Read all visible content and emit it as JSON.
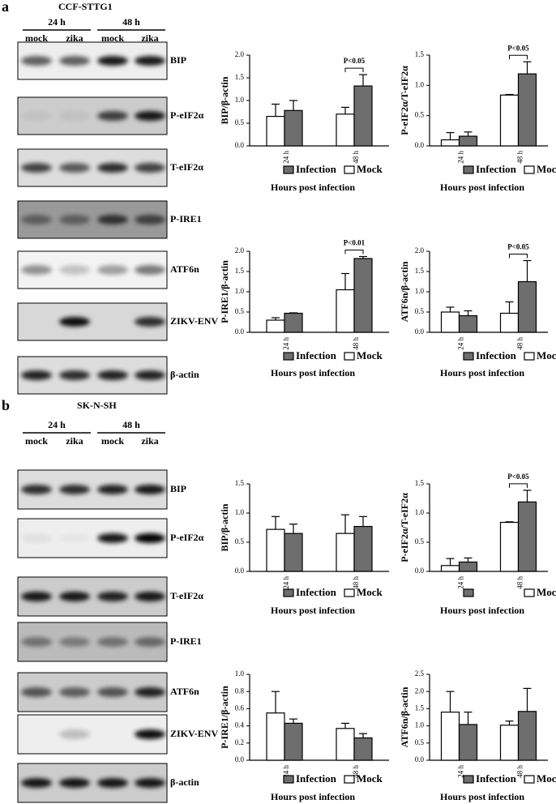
{
  "panels": [
    {
      "label": "a",
      "cell_line": "CCF-STTG1",
      "time_headers": [
        "24 h",
        "48 h"
      ],
      "lanes": [
        "mock",
        "zika",
        "mock",
        "zika"
      ],
      "blots": [
        "BIP",
        "P-eIF2α",
        "T-eIF2α",
        "P-IRE1",
        "ATF6n",
        "ZIKV-ENV",
        "β-actin"
      ]
    },
    {
      "label": "b",
      "cell_line": "SK-N-SH",
      "time_headers": [
        "24 h",
        "48 h"
      ],
      "lanes": [
        "mock",
        "zika",
        "mock",
        "zika"
      ],
      "blots": [
        "BIP",
        "P-eIF2α",
        "T-eIF2α",
        "P-IRE1",
        "ATF6n",
        "ZIKV-ENV",
        "β-actin"
      ]
    }
  ],
  "chart_data": [
    {
      "type": "bar",
      "ylabel": "BIP/β-actin",
      "xlabel": "Hours post infection",
      "categories": [
        "24 h",
        "48 h"
      ],
      "series": [
        {
          "name": "Mock",
          "color": "#ffffff",
          "values": [
            0.65,
            0.7
          ],
          "errors": [
            0.27,
            0.15
          ]
        },
        {
          "name": "Infection",
          "color": "#6e6e6e",
          "values": [
            0.78,
            1.32
          ],
          "errors": [
            0.22,
            0.25
          ]
        }
      ],
      "ylim": [
        0,
        2
      ],
      "yticks": [
        {
          "value": 0,
          "label": "0.0"
        },
        {
          "value": 0.5,
          "label": "0.5"
        },
        {
          "value": 1,
          "label": "1.0"
        },
        {
          "value": 1.5,
          "label": "1.5"
        },
        {
          "value": 2,
          "label": "2.0"
        }
      ],
      "annotation": "P<0.05"
    },
    {
      "type": "bar",
      "ylabel": "P-eIF2α/T-eIF2α",
      "xlabel": "Hours post infection",
      "categories": [
        "24 h",
        "48 h"
      ],
      "series": [
        {
          "name": "Mock",
          "color": "#ffffff",
          "values": [
            0.1,
            0.84
          ],
          "errors": [
            0.12,
            0.01
          ]
        },
        {
          "name": "Infection",
          "color": "#6e6e6e",
          "values": [
            0.16,
            1.19
          ],
          "errors": [
            0.07,
            0.2
          ]
        }
      ],
      "ylim": [
        0,
        1.5
      ],
      "yticks": [
        {
          "value": 0,
          "label": "0.0"
        },
        {
          "value": 0.5,
          "label": "0.5"
        },
        {
          "value": 1,
          "label": "1.0"
        },
        {
          "value": 1.5,
          "label": "1.5"
        }
      ],
      "annotation": "P<0.05"
    },
    {
      "type": "bar",
      "ylabel": "P-IRE1/β-actin",
      "xlabel": "Hours post infection",
      "categories": [
        "24 h",
        "48 h"
      ],
      "series": [
        {
          "name": "Mock",
          "color": "#ffffff",
          "values": [
            0.3,
            1.05
          ],
          "errors": [
            0.06,
            0.4
          ]
        },
        {
          "name": "Infection",
          "color": "#6e6e6e",
          "values": [
            0.47,
            1.82
          ],
          "errors": [
            0.01,
            0.05
          ]
        }
      ],
      "ylim": [
        0,
        2
      ],
      "yticks": [
        {
          "value": 0,
          "label": "0.0"
        },
        {
          "value": 0.5,
          "label": "0.5"
        },
        {
          "value": 1,
          "label": "1.0"
        },
        {
          "value": 1.5,
          "label": "1.5"
        },
        {
          "value": 2,
          "label": "2.0"
        }
      ],
      "annotation": "P<0.01"
    },
    {
      "type": "bar",
      "ylabel": "ATF6n/β-actin",
      "xlabel": "Hours post infection",
      "categories": [
        "24 h",
        "48 h"
      ],
      "series": [
        {
          "name": "Mock",
          "color": "#ffffff",
          "values": [
            0.5,
            0.47
          ],
          "errors": [
            0.12,
            0.28
          ]
        },
        {
          "name": "Infection",
          "color": "#6e6e6e",
          "values": [
            0.41,
            1.25
          ],
          "errors": [
            0.12,
            0.52
          ]
        }
      ],
      "ylim": [
        0,
        2
      ],
      "yticks": [
        {
          "value": 0,
          "label": "0.0"
        },
        {
          "value": 0.5,
          "label": "0.5"
        },
        {
          "value": 1,
          "label": "1.0"
        },
        {
          "value": 1.5,
          "label": "1.5"
        },
        {
          "value": 2,
          "label": "2.0"
        }
      ],
      "annotation": "P<0.05"
    },
    {
      "type": "bar",
      "ylabel": "BIP/β-actin",
      "xlabel": "Hours post infection",
      "categories": [
        "24 h",
        "48 h"
      ],
      "series": [
        {
          "name": "Mock",
          "color": "#ffffff",
          "values": [
            0.72,
            0.65
          ],
          "errors": [
            0.22,
            0.32
          ]
        },
        {
          "name": "Infection",
          "color": "#6e6e6e",
          "values": [
            0.65,
            0.77
          ],
          "errors": [
            0.16,
            0.17
          ]
        }
      ],
      "ylim": [
        0,
        1.5
      ],
      "yticks": [
        {
          "value": 0,
          "label": "0.0"
        },
        {
          "value": 0.5,
          "label": "0.5"
        },
        {
          "value": 1,
          "label": "1.0"
        },
        {
          "value": 1.5,
          "label": "1.5"
        }
      ]
    },
    {
      "type": "bar",
      "ylabel": "P-eIF2α/T-eIF2α",
      "xlabel": "Hours post infection",
      "categories": [
        "24 h",
        "48 h"
      ],
      "series": [
        {
          "name": "Mock",
          "color": "#ffffff",
          "values": [
            0.1,
            0.84
          ],
          "errors": [
            0.12,
            0.01
          ]
        },
        {
          "name": null,
          "color": "#6e6e6e",
          "values": [
            0.16,
            1.19
          ],
          "errors": [
            0.07,
            0.2
          ]
        }
      ],
      "ylim": [
        0,
        1.5
      ],
      "yticks": [
        {
          "value": 0,
          "label": "0.0"
        },
        {
          "value": 0.5,
          "label": "0.5"
        },
        {
          "value": 1,
          "label": "1.0"
        },
        {
          "value": 1.5,
          "label": "1.5"
        }
      ],
      "annotation": "P<0.05"
    },
    {
      "type": "bar",
      "ylabel": "P-IRE1/β-actin",
      "xlabel": "Hours post infection",
      "categories": [
        "24 h",
        "48 h"
      ],
      "series": [
        {
          "name": "Mock",
          "color": "#ffffff",
          "values": [
            0.55,
            0.37
          ],
          "errors": [
            0.25,
            0.06
          ]
        },
        {
          "name": "Infection",
          "color": "#6e6e6e",
          "values": [
            0.43,
            0.26
          ],
          "errors": [
            0.05,
            0.05
          ]
        }
      ],
      "ylim": [
        0,
        1
      ],
      "yticks": [
        {
          "value": 0,
          "label": "0.0"
        },
        0.2,
        0.4,
        0.6,
        0.8,
        {
          "value": 1,
          "label": "1.0"
        }
      ]
    },
    {
      "type": "bar",
      "ylabel": "ATF6n/β-actin",
      "xlabel": "Hours post infection",
      "categories": [
        "24 h",
        "48 h"
      ],
      "series": [
        {
          "name": "Mock",
          "color": "#ffffff",
          "values": [
            1.4,
            1.02
          ],
          "errors": [
            0.6,
            0.12
          ]
        },
        {
          "name": "Infection",
          "color": "#6e6e6e",
          "values": [
            1.04,
            1.42
          ],
          "errors": [
            0.36,
            0.67
          ]
        }
      ],
      "ylim": [
        0,
        2.5
      ],
      "yticks": [
        {
          "value": 0,
          "label": "0.0"
        },
        {
          "value": 0.5,
          "label": "0.5"
        },
        {
          "value": 1,
          "label": "1.0"
        },
        {
          "value": 1.5,
          "label": "1.5"
        },
        {
          "value": 2,
          "label": "2.0"
        },
        {
          "value": 2.5,
          "label": "2.5"
        }
      ]
    }
  ]
}
